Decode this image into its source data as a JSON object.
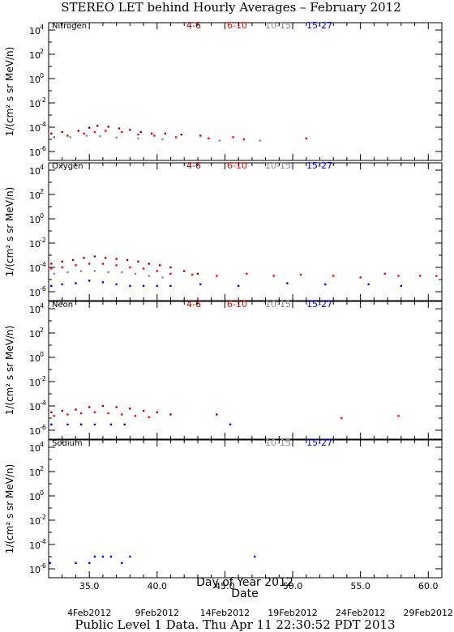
{
  "title": "STEREO LET behind Hourly Averages – February 2012",
  "footer": "Public Level 1 Data. Thu Apr 11 22:30:52 PDT 2013",
  "colors": {
    "4-6": "#a00000",
    "6-10": "#ff0000",
    "10-15": "#8c8c8c",
    "15-27": "#0000ff"
  },
  "chart_data": [
    {
      "type": "scatter",
      "panel": "Nitrogen",
      "ylabel": "1/(cm² s sr MeV/n)",
      "yscale": "log",
      "ylim": [
        1e-06,
        10000.0
      ],
      "xlim": [
        32,
        61
      ],
      "legend": [
        "4-6",
        "6-10",
        "10-15",
        "15-27"
      ],
      "series": [
        {
          "name": "4-6",
          "points": [
            [
              32.2,
              3e-05
            ],
            [
              33,
              4e-05
            ],
            [
              34.2,
              5e-05
            ],
            [
              35,
              9e-05
            ],
            [
              35.6,
              0.00013
            ],
            [
              36.4,
              0.00011
            ],
            [
              37.2,
              8e-05
            ],
            [
              38,
              6e-05
            ],
            [
              38.8,
              4e-05
            ],
            [
              39.6,
              3e-05
            ],
            [
              40.6,
              3e-05
            ],
            [
              41.8,
              2.5e-05
            ],
            [
              43.2,
              2e-05
            ]
          ]
        },
        {
          "name": "6-10",
          "points": [
            [
              32.4,
              1.5e-05
            ],
            [
              33.4,
              2e-05
            ],
            [
              34.6,
              3e-05
            ],
            [
              35.4,
              4e-05
            ],
            [
              36.2,
              5e-05
            ],
            [
              37.4,
              4e-05
            ],
            [
              38.6,
              2.5e-05
            ],
            [
              39.8,
              2e-05
            ],
            [
              41.4,
              1.5e-05
            ],
            [
              43.8,
              1.2e-05
            ],
            [
              45.6,
              1.5e-05
            ],
            [
              46.4,
              1e-05
            ],
            [
              51,
              1.2e-05
            ]
          ]
        },
        {
          "name": "10-15",
          "points": [
            [
              32.4,
              1.5e-05
            ],
            [
              33.6,
              1.5e-05
            ],
            [
              34.8,
              2e-05
            ],
            [
              35.8,
              1.8e-05
            ],
            [
              37,
              1.4e-05
            ],
            [
              38.6,
              1.2e-05
            ],
            [
              40.4,
              1e-05
            ],
            [
              44.6,
              8e-06
            ],
            [
              47.6,
              8e-06
            ]
          ]
        },
        {
          "name": "15-27",
          "points": []
        }
      ]
    },
    {
      "type": "scatter",
      "panel": "Oxygen",
      "ylabel": "1/(cm² s sr MeV/n)",
      "yscale": "log",
      "ylim": [
        1e-06,
        10000.0
      ],
      "xlim": [
        32,
        61
      ],
      "legend": [
        "4-6",
        "6-10",
        "10-15",
        "15-27"
      ],
      "series": [
        {
          "name": "4-6",
          "points": [
            [
              32.2,
              0.0002
            ],
            [
              33,
              0.0003
            ],
            [
              33.8,
              0.0004
            ],
            [
              34.6,
              0.0006
            ],
            [
              35.4,
              0.0008
            ],
            [
              36.2,
              0.0006
            ],
            [
              37,
              0.0005
            ],
            [
              37.8,
              0.0004
            ],
            [
              38.6,
              0.0003
            ],
            [
              39.4,
              0.0002
            ],
            [
              40.2,
              0.00015
            ],
            [
              41,
              0.0001
            ],
            [
              42,
              5e-05
            ],
            [
              43,
              3e-05
            ]
          ]
        },
        {
          "name": "6-10",
          "points": [
            [
              32.2,
              8e-05
            ],
            [
              33,
              0.0001
            ],
            [
              34,
              0.00015
            ],
            [
              35,
              0.0002
            ],
            [
              36,
              0.0002
            ],
            [
              37,
              0.00015
            ],
            [
              38,
              0.0001
            ],
            [
              39,
              8e-05
            ],
            [
              40,
              5e-05
            ],
            [
              41,
              3e-05
            ],
            [
              42.6,
              2.5e-05
            ],
            [
              44.4,
              2e-05
            ],
            [
              46.6,
              3e-05
            ],
            [
              48.6,
              2e-05
            ],
            [
              50.6,
              2.5e-05
            ],
            [
              53,
              2e-05
            ],
            [
              55,
              1.5e-05
            ],
            [
              56.8,
              3e-05
            ],
            [
              57.8,
              2e-05
            ],
            [
              59.4,
              2e-05
            ],
            [
              60.6,
              2e-05
            ]
          ]
        },
        {
          "name": "10-15",
          "points": [
            [
              32.4,
              3e-05
            ],
            [
              33.4,
              4e-05
            ],
            [
              34.4,
              5e-05
            ],
            [
              35.4,
              5e-05
            ],
            [
              36.4,
              4e-05
            ],
            [
              37.4,
              4e-05
            ],
            [
              38.4,
              3e-05
            ],
            [
              39.4,
              2e-05
            ],
            [
              40.4,
              1.5e-05
            ]
          ]
        },
        {
          "name": "15-27",
          "points": [
            [
              32.2,
              3e-06
            ],
            [
              33,
              4e-06
            ],
            [
              34,
              5e-06
            ],
            [
              35,
              8e-06
            ],
            [
              36,
              6e-06
            ],
            [
              37,
              4e-06
            ],
            [
              38,
              3e-06
            ],
            [
              39,
              3e-06
            ],
            [
              40,
              3e-06
            ],
            [
              41,
              3e-06
            ],
            [
              43.2,
              4e-06
            ],
            [
              46,
              3e-06
            ],
            [
              49.6,
              5e-06
            ],
            [
              52.4,
              4e-06
            ],
            [
              55.6,
              4e-06
            ],
            [
              58,
              3e-06
            ]
          ]
        }
      ]
    },
    {
      "type": "scatter",
      "panel": "Neon",
      "ylabel": "1/(cm² s sr MeV/n)",
      "yscale": "log",
      "ylim": [
        1e-06,
        10000.0
      ],
      "xlim": [
        32,
        61
      ],
      "legend": [
        "4-6",
        "6-10",
        "10-15",
        "15-27"
      ],
      "series": [
        {
          "name": "4-6",
          "points": [
            [
              32.2,
              3e-05
            ],
            [
              33,
              4e-05
            ],
            [
              34,
              5e-05
            ],
            [
              35,
              8e-05
            ],
            [
              36,
              0.0001
            ],
            [
              37,
              8e-05
            ],
            [
              38,
              6e-05
            ],
            [
              39,
              4e-05
            ],
            [
              40,
              3e-05
            ],
            [
              41,
              2e-05
            ],
            [
              44.4,
              2e-05
            ]
          ]
        },
        {
          "name": "6-10",
          "points": [
            [
              32.4,
              1.5e-05
            ],
            [
              33.4,
              2e-05
            ],
            [
              34.4,
              2.5e-05
            ],
            [
              35.4,
              3e-05
            ],
            [
              36.4,
              2.5e-05
            ],
            [
              37.4,
              2e-05
            ],
            [
              38.4,
              1.5e-05
            ],
            [
              39.4,
              1.2e-05
            ],
            [
              53.6,
              1e-05
            ],
            [
              57.8,
              1.5e-05
            ]
          ]
        },
        {
          "name": "10-15",
          "points": []
        },
        {
          "name": "15-27",
          "points": [
            [
              32.2,
              3e-06
            ],
            [
              33.4,
              3e-06
            ],
            [
              34.4,
              3e-06
            ],
            [
              35.4,
              3e-06
            ],
            [
              36.6,
              3e-06
            ],
            [
              37.6,
              3e-06
            ],
            [
              45.4,
              3e-06
            ]
          ]
        }
      ]
    },
    {
      "type": "scatter",
      "panel": "Sodium",
      "ylabel": "1/(cm² s sr MeV/n)",
      "yscale": "log",
      "ylim": [
        1e-06,
        10000.0
      ],
      "xlim": [
        32,
        61
      ],
      "legend": [
        "10-15",
        "15-27"
      ],
      "series": [
        {
          "name": "10-15",
          "points": []
        },
        {
          "name": "15-27",
          "points": [
            [
              32.1,
              3e-06
            ],
            [
              34,
              3e-06
            ],
            [
              35,
              3e-06
            ],
            [
              35.4,
              1e-05
            ],
            [
              36,
              1e-05
            ],
            [
              36.6,
              1e-05
            ],
            [
              37.4,
              3e-06
            ],
            [
              38,
              1e-05
            ],
            [
              47.2,
              1e-05
            ]
          ]
        }
      ]
    }
  ],
  "xaxis": {
    "label": "Day of Year 2012",
    "ticks": [
      35,
      40,
      45,
      50,
      55,
      60
    ],
    "tick_labels": [
      "35.0",
      "40.0",
      "45.0",
      "50.0",
      "55.0",
      "60.0"
    ]
  },
  "date_axis": {
    "label": "Date",
    "ticks": [
      35,
      40,
      45,
      50,
      55,
      60
    ],
    "tick_labels": [
      "4Feb2012",
      "9Feb2012",
      "14Feb2012",
      "19Feb2012",
      "24Feb2012",
      "29Feb2012"
    ]
  },
  "yaxis": {
    "ticks": [
      4,
      2,
      0,
      -2,
      -4,
      -6
    ],
    "tick_labels": [
      "10",
      "10",
      "10",
      "10",
      "10",
      "10"
    ],
    "tick_exponents": [
      "4",
      "2",
      "0",
      "-2",
      "-4",
      "-6"
    ]
  }
}
